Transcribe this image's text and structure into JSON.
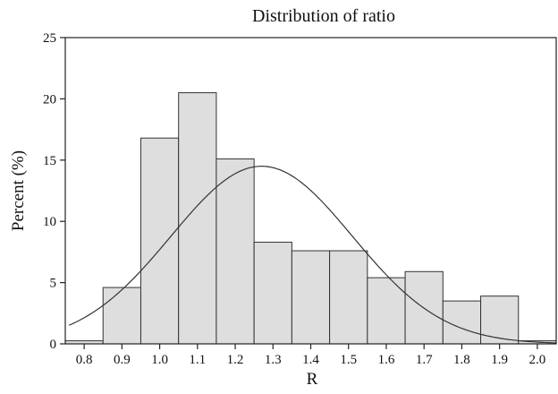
{
  "chart_data": {
    "type": "bar",
    "title": "Distribution of ratio",
    "xlabel": "R",
    "ylabel": "Percent (%)",
    "xlim": [
      0.75,
      2.05
    ],
    "ylim": [
      0,
      25
    ],
    "x_ticks": [
      "0.8",
      "0.9",
      "1.0",
      "1.1",
      "1.2",
      "1.3",
      "1.4",
      "1.5",
      "1.6",
      "1.7",
      "1.8",
      "1.9",
      "2.0"
    ],
    "y_ticks": [
      "0",
      "5",
      "10",
      "15",
      "20",
      "25"
    ],
    "bin_width": 0.1,
    "categories": [
      "0.8",
      "0.9",
      "1.0",
      "1.1",
      "1.2",
      "1.3",
      "1.4",
      "1.5",
      "1.6",
      "1.7",
      "1.8",
      "1.9",
      "2.0"
    ],
    "values": [
      0.25,
      4.6,
      16.8,
      20.5,
      15.1,
      8.3,
      7.6,
      7.6,
      5.4,
      5.9,
      3.5,
      3.9,
      0.25
    ],
    "overlay": {
      "type": "normal-curve",
      "mean": 1.27,
      "sd": 0.24,
      "peak": 14.5
    },
    "bar_fill": "#dedede",
    "bar_stroke": "#333333",
    "curve_color": "#333333",
    "grid": false
  }
}
